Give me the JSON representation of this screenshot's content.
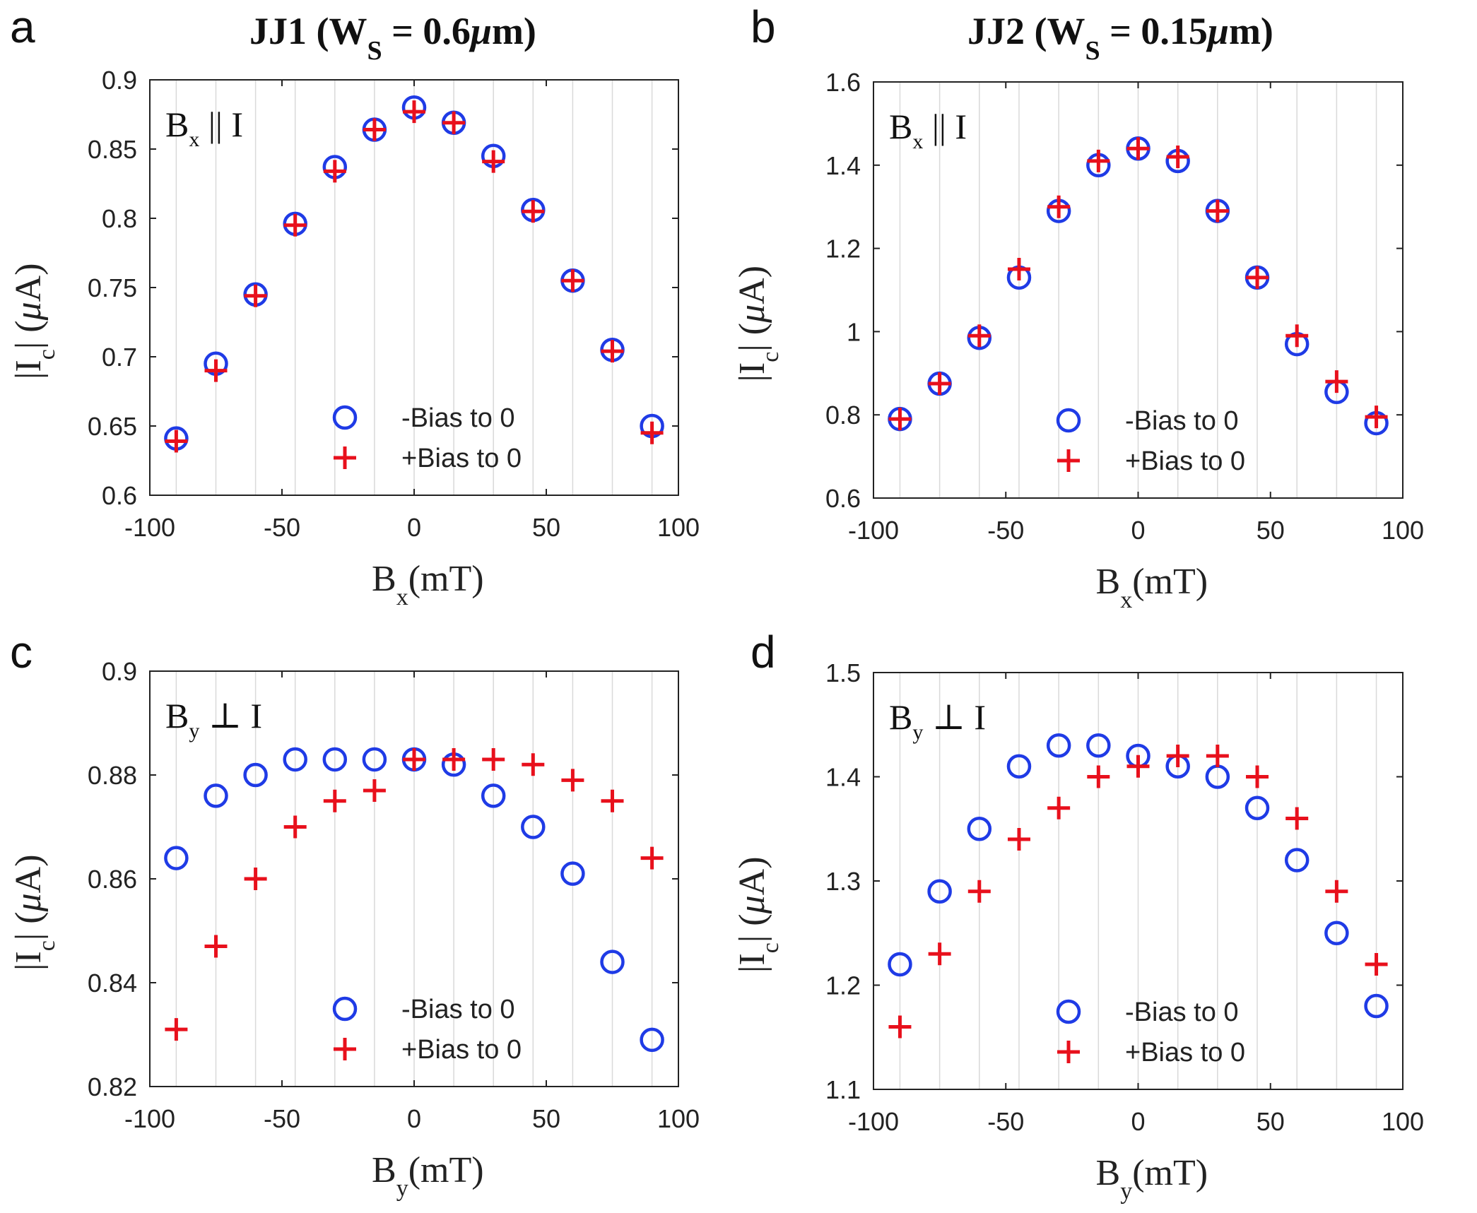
{
  "figure": {
    "colors": {
      "circle": "#1f3be6",
      "plus": "#e8101c",
      "axis": "#222222",
      "grid": "#d9d9d9"
    }
  },
  "chart_data": [
    {
      "panel_label": "a",
      "title": {
        "pre": "JJ1 (W",
        "sub": "S",
        "post": " = 0.6",
        "mu": "μ",
        "unit": "m)"
      },
      "type": "scatter",
      "xlabel": {
        "main": "B",
        "sub": "x",
        "unit": "(mT)"
      },
      "ylabel": {
        "pre": "|I",
        "sub": "c",
        "post": "| (",
        "mu": "μ",
        "unit": "A)"
      },
      "annotation": {
        "main": "B",
        "sub": "x",
        "rel": "||",
        "tail": "I"
      },
      "xlim": [
        -100,
        100
      ],
      "ylim": [
        0.6,
        0.9
      ],
      "xticks": [
        -100,
        -50,
        0,
        50,
        100
      ],
      "xtick_labels": [
        "-100",
        "-50",
        "0",
        "50",
        "100"
      ],
      "yticks": [
        0.6,
        0.65,
        0.7,
        0.75,
        0.8,
        0.85,
        0.9
      ],
      "ytick_labels": [
        "0.6",
        "0.65",
        "0.7",
        "0.75",
        "0.8",
        "0.85",
        "0.9"
      ],
      "x": [
        -90,
        -75,
        -60,
        -45,
        -30,
        -15,
        0,
        15,
        30,
        45,
        60,
        75,
        90
      ],
      "series": [
        {
          "name": "-Bias to 0",
          "marker": "circle",
          "values": [
            0.641,
            0.695,
            0.745,
            0.796,
            0.837,
            0.864,
            0.88,
            0.869,
            0.845,
            0.806,
            0.755,
            0.705,
            0.65
          ]
        },
        {
          "name": "+Bias to 0",
          "marker": "plus",
          "values": [
            0.639,
            0.69,
            0.744,
            0.795,
            0.834,
            0.864,
            0.877,
            0.869,
            0.841,
            0.805,
            0.755,
            0.704,
            0.645
          ]
        }
      ]
    },
    {
      "panel_label": "b",
      "title": {
        "pre": "JJ2 (W",
        "sub": "S",
        "post": " = 0.15",
        "mu": "μ",
        "unit": "m)"
      },
      "type": "scatter",
      "xlabel": {
        "main": "B",
        "sub": "x",
        "unit": "(mT)"
      },
      "ylabel": {
        "pre": "|I",
        "sub": "c",
        "post": "| (",
        "mu": "μ",
        "unit": "A)"
      },
      "annotation": {
        "main": "B",
        "sub": "x",
        "rel": "||",
        "tail": "I"
      },
      "xlim": [
        -100,
        100
      ],
      "ylim": [
        0.6,
        1.6
      ],
      "xticks": [
        -100,
        -50,
        0,
        50,
        100
      ],
      "xtick_labels": [
        "-100",
        "-50",
        "0",
        "50",
        "100"
      ],
      "yticks": [
        0.6,
        0.8,
        1.0,
        1.2,
        1.4,
        1.6
      ],
      "ytick_labels": [
        "0.6",
        "0.8",
        "1",
        "1.2",
        "1.4",
        "1.6"
      ],
      "x": [
        -90,
        -75,
        -60,
        -45,
        -30,
        -15,
        0,
        15,
        30,
        45,
        60,
        75,
        90
      ],
      "series": [
        {
          "name": "-Bias to 0",
          "marker": "circle",
          "values": [
            0.79,
            0.875,
            0.985,
            1.13,
            1.29,
            1.4,
            1.44,
            1.41,
            1.29,
            1.13,
            0.97,
            0.855,
            0.78
          ]
        },
        {
          "name": "+Bias to 0",
          "marker": "plus",
          "values": [
            0.79,
            0.875,
            0.99,
            1.15,
            1.3,
            1.41,
            1.44,
            1.42,
            1.29,
            1.13,
            0.99,
            0.88,
            0.795
          ]
        }
      ]
    },
    {
      "panel_label": "c",
      "type": "scatter",
      "xlabel": {
        "main": "B",
        "sub": "y",
        "unit": "(mT)"
      },
      "ylabel": {
        "pre": "|I",
        "sub": "c",
        "post": "| (",
        "mu": "μ",
        "unit": "A)"
      },
      "annotation": {
        "main": "B",
        "sub": "y",
        "rel": "⊥",
        "tail": "I"
      },
      "xlim": [
        -100,
        100
      ],
      "ylim": [
        0.82,
        0.9
      ],
      "xticks": [
        -100,
        -50,
        0,
        50,
        100
      ],
      "xtick_labels": [
        "-100",
        "-50",
        "0",
        "50",
        "100"
      ],
      "yticks": [
        0.82,
        0.84,
        0.86,
        0.88,
        0.9
      ],
      "ytick_labels": [
        "0.82",
        "0.84",
        "0.86",
        "0.88",
        "0.9"
      ],
      "x": [
        -90,
        -75,
        -60,
        -45,
        -30,
        -15,
        0,
        15,
        30,
        45,
        60,
        75,
        90
      ],
      "series": [
        {
          "name": "-Bias to 0",
          "marker": "circle",
          "values": [
            0.864,
            0.876,
            0.88,
            0.883,
            0.883,
            0.883,
            0.883,
            0.882,
            0.876,
            0.87,
            0.861,
            0.844,
            0.829
          ]
        },
        {
          "name": "+Bias to 0",
          "marker": "plus",
          "values": [
            0.831,
            0.847,
            0.86,
            0.87,
            0.875,
            0.877,
            0.883,
            0.883,
            0.883,
            0.882,
            0.879,
            0.875,
            0.864
          ]
        }
      ]
    },
    {
      "panel_label": "d",
      "type": "scatter",
      "xlabel": {
        "main": "B",
        "sub": "y",
        "unit": "(mT)"
      },
      "ylabel": {
        "pre": "|I",
        "sub": "c",
        "post": "| (",
        "mu": "μ",
        "unit": "A)"
      },
      "annotation": {
        "main": "B",
        "sub": "y",
        "rel": "⊥",
        "tail": "I"
      },
      "xlim": [
        -100,
        100
      ],
      "ylim": [
        1.1,
        1.5
      ],
      "xticks": [
        -100,
        -50,
        0,
        50,
        100
      ],
      "xtick_labels": [
        "-100",
        "-50",
        "0",
        "50",
        "100"
      ],
      "yticks": [
        1.1,
        1.2,
        1.3,
        1.4,
        1.5
      ],
      "ytick_labels": [
        "1.1",
        "1.2",
        "1.3",
        "1.4",
        "1.5"
      ],
      "x": [
        -90,
        -75,
        -60,
        -45,
        -30,
        -15,
        0,
        15,
        30,
        45,
        60,
        75,
        90
      ],
      "series": [
        {
          "name": "-Bias to 0",
          "marker": "circle",
          "values": [
            1.22,
            1.29,
            1.35,
            1.41,
            1.43,
            1.43,
            1.42,
            1.41,
            1.4,
            1.37,
            1.32,
            1.25,
            1.18
          ]
        },
        {
          "name": "+Bias to 0",
          "marker": "plus",
          "values": [
            1.16,
            1.23,
            1.29,
            1.34,
            1.37,
            1.4,
            1.41,
            1.42,
            1.42,
            1.4,
            1.36,
            1.29,
            1.22
          ]
        }
      ]
    }
  ]
}
